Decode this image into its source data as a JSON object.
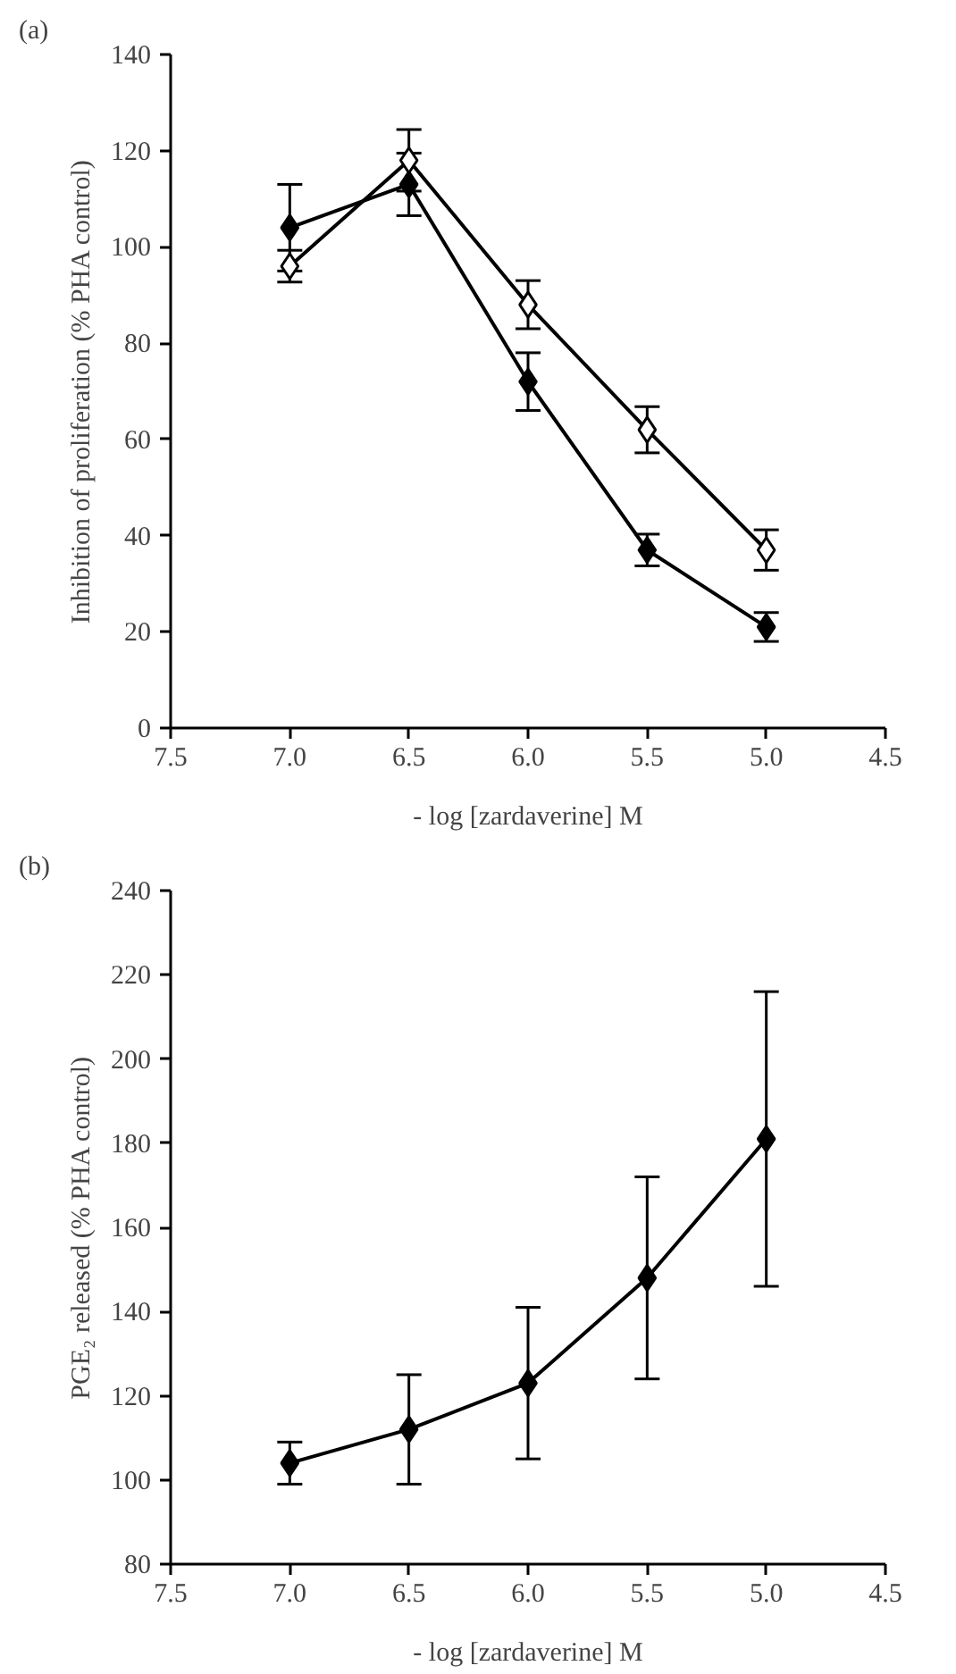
{
  "chart_data": [
    {
      "type": "line",
      "annotations": [
        "(a)"
      ],
      "xlabel": "- log [zardaverine] M",
      "ylabel": "Inhibition of proliferation (% PHA control)",
      "marker": "diamond",
      "line_style": "solid",
      "grid": false,
      "x": [
        7.0,
        6.5,
        6.0,
        5.5,
        5.0
      ],
      "xlim": [
        7.5,
        4.5
      ],
      "xticks": [
        7.5,
        {
          "value": 7,
          "label": "7.0"
        },
        6.5,
        {
          "value": 6,
          "label": "6.0"
        },
        5.5,
        {
          "value": 5,
          "label": "5.0"
        },
        4.5
      ],
      "ylim": [
        0,
        140
      ],
      "yticks": [
        0,
        20,
        40,
        60,
        80,
        100,
        120,
        140
      ],
      "series": [
        {
          "color": "#000000",
          "values": [
            104,
            113,
            72,
            37,
            21
          ],
          "errors": [
            9,
            6.5,
            6,
            3.3,
            3
          ]
        },
        {
          "color": "#000000",
          "values": [
            96,
            118,
            88,
            62,
            37
          ],
          "errors": [
            3.3,
            6.4,
            5,
            4.8,
            4.2
          ]
        }
      ]
    },
    {
      "type": "line",
      "annotations": [
        "(b)"
      ],
      "xlabel": "- log [zardaverine] M",
      "ylabel": "PGE₂ released (% PHA control)",
      "marker": "diamond",
      "line_style": "solid",
      "grid": false,
      "x": [
        7.0,
        6.5,
        6.0,
        5.5,
        5.0
      ],
      "xlim": [
        7.5,
        4.5
      ],
      "xticks": [
        7.5,
        {
          "value": 7,
          "label": "7.0"
        },
        6.5,
        {
          "value": 6,
          "label": "6.0"
        },
        5.5,
        {
          "value": 5,
          "label": "5.0"
        },
        4.5
      ],
      "ylim": [
        80,
        240
      ],
      "yticks": [
        80,
        100,
        120,
        140,
        160,
        180,
        200,
        220,
        240
      ],
      "series": [
        {
          "color": "#000000",
          "values": [
            104,
            112,
            123,
            148,
            181
          ],
          "errors": [
            5,
            13,
            18,
            24,
            35
          ]
        }
      ]
    }
  ]
}
